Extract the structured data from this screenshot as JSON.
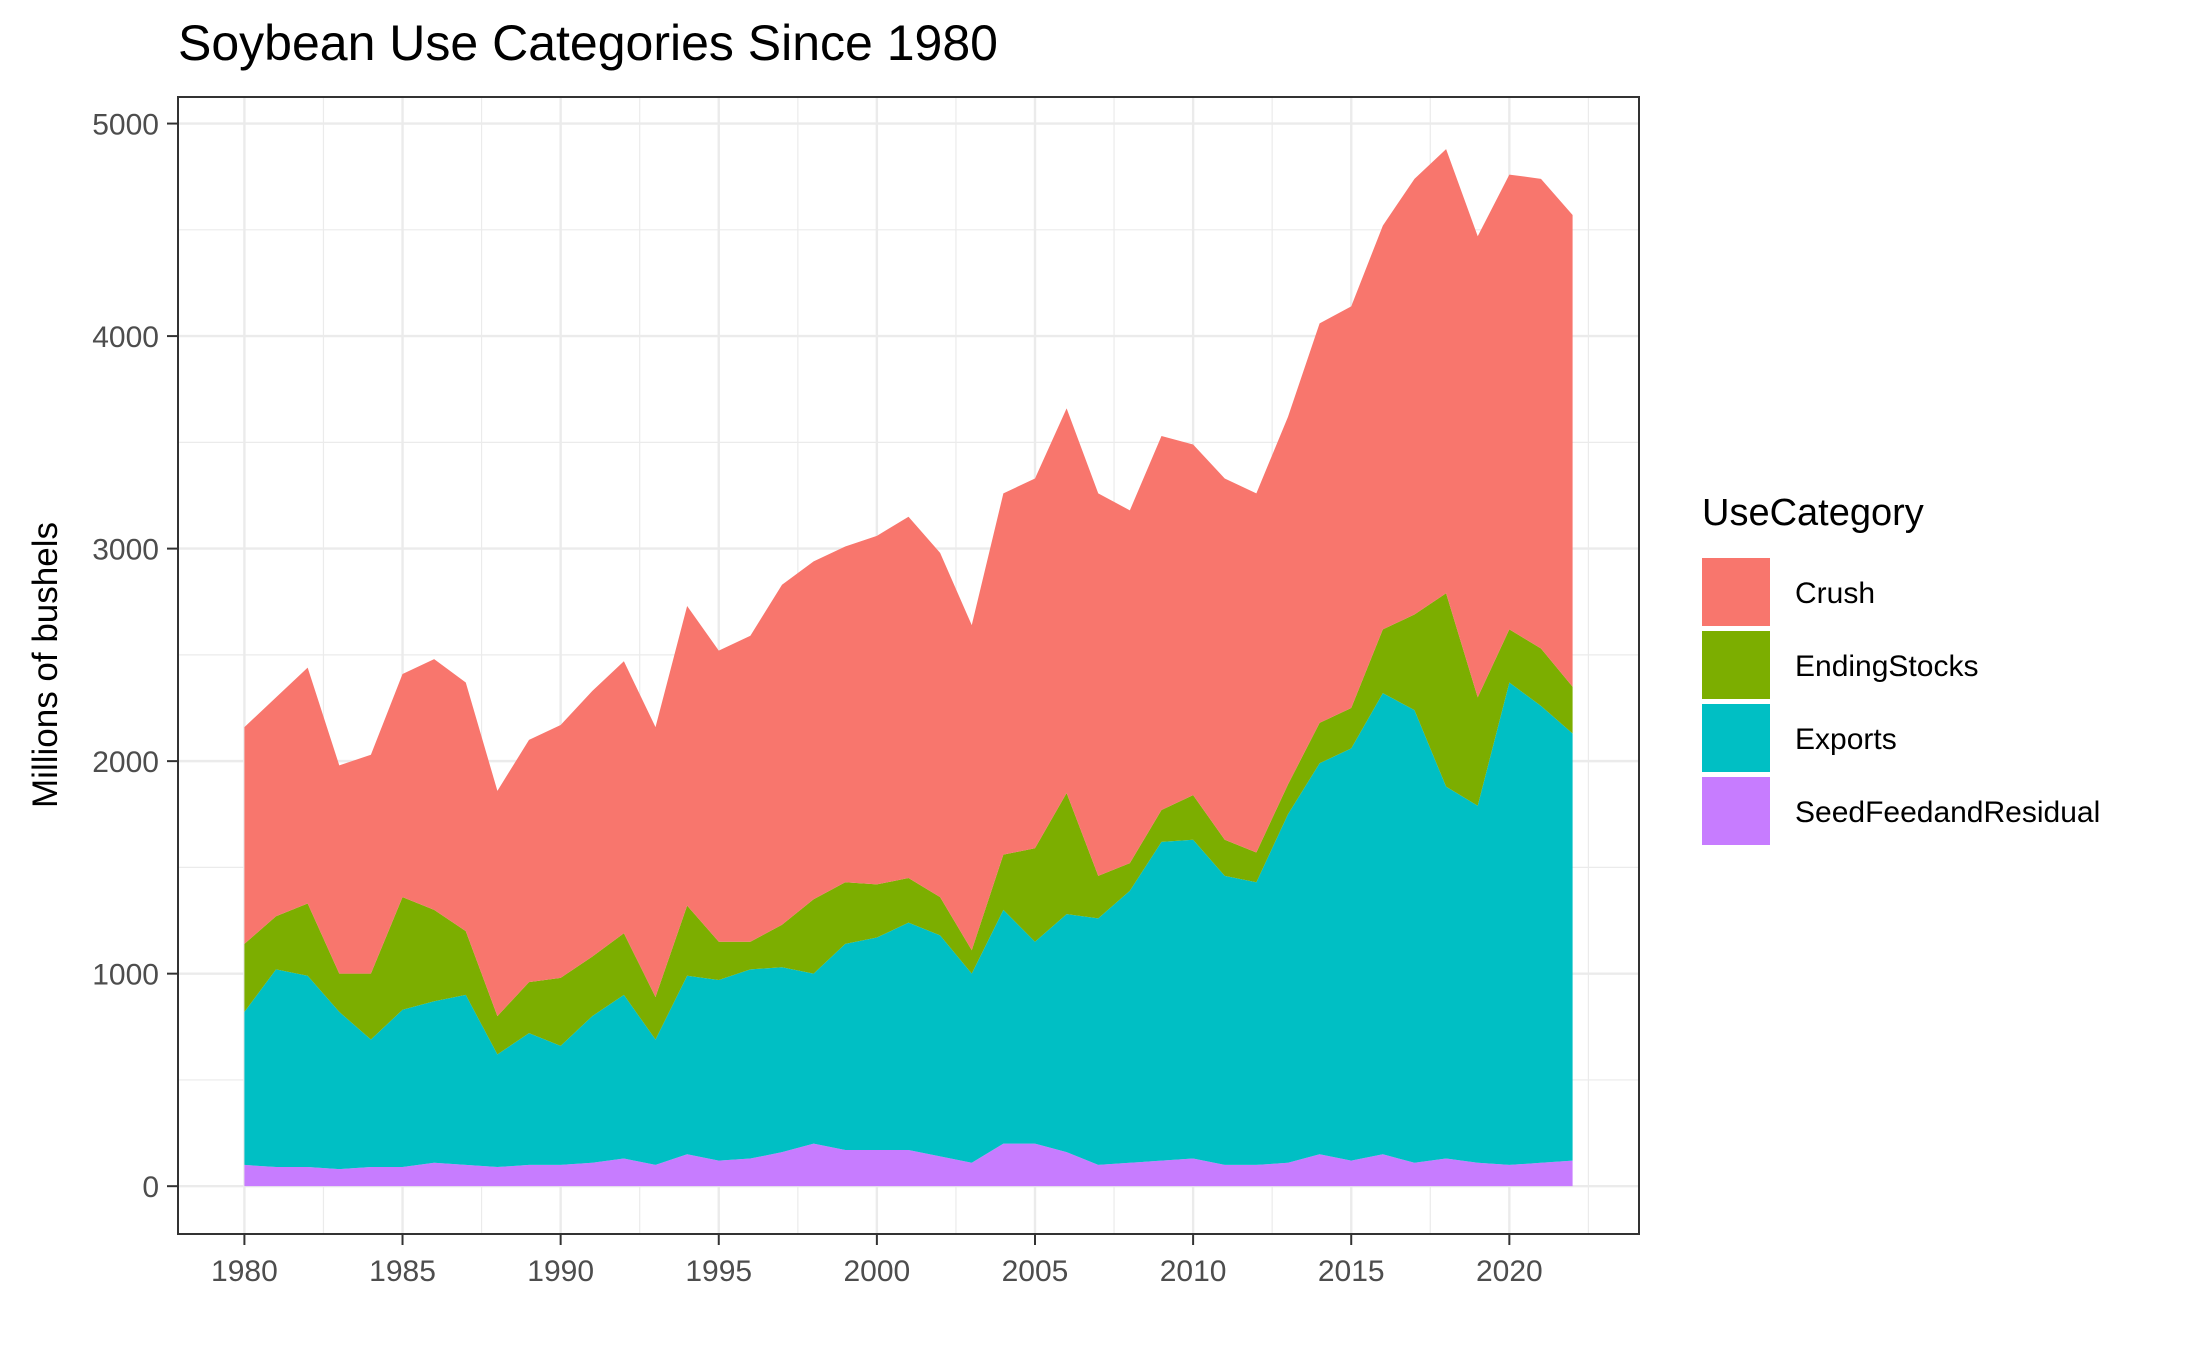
{
  "chart_data": {
    "type": "area",
    "stacked": true,
    "title": "Soybean Use Categories Since 1980",
    "xlabel": "",
    "ylabel": "Millions of bushels",
    "xlim": [
      1977.9,
      2024.1
    ],
    "ylim": [
      -225,
      5125
    ],
    "x_ticks": [
      1980,
      1985,
      1990,
      1995,
      2000,
      2005,
      2010,
      2015,
      2020
    ],
    "y_ticks": [
      0,
      1000,
      2000,
      3000,
      4000,
      5000
    ],
    "grid": true,
    "legend": {
      "title": "UseCategory",
      "position": "right"
    },
    "x": [
      1980,
      1981,
      1982,
      1983,
      1984,
      1985,
      1986,
      1987,
      1988,
      1989,
      1990,
      1991,
      1992,
      1993,
      1994,
      1995,
      1996,
      1997,
      1998,
      1999,
      2000,
      2001,
      2002,
      2003,
      2004,
      2005,
      2006,
      2007,
      2008,
      2009,
      2010,
      2011,
      2012,
      2013,
      2014,
      2015,
      2016,
      2017,
      2018,
      2019,
      2020,
      2021,
      2022
    ],
    "stack_order": [
      "SeedFeedandResidual",
      "Exports",
      "EndingStocks",
      "Crush"
    ],
    "series": [
      {
        "name": "Crush",
        "color": "#F8766D",
        "values": [
          1020,
          1030,
          1110,
          980,
          1030,
          1050,
          1180,
          1170,
          1060,
          1140,
          1190,
          1250,
          1280,
          1270,
          1410,
          1370,
          1440,
          1600,
          1590,
          1580,
          1640,
          1700,
          1620,
          1530,
          1700,
          1740,
          1810,
          1800,
          1660,
          1760,
          1650,
          1700,
          1690,
          1730,
          1880,
          1890,
          1900,
          2050,
          2090,
          2170,
          2140,
          2210,
          2220
        ]
      },
      {
        "name": "EndingStocks",
        "color": "#7CAE00",
        "values": [
          320,
          250,
          340,
          180,
          310,
          530,
          430,
          300,
          180,
          240,
          320,
          280,
          290,
          200,
          330,
          180,
          130,
          200,
          350,
          290,
          250,
          210,
          180,
          110,
          260,
          440,
          570,
          200,
          130,
          150,
          210,
          170,
          140,
          140,
          190,
          190,
          300,
          450,
          910,
          510,
          250,
          270,
          220
        ]
      },
      {
        "name": "Exports",
        "color": "#00BFC4",
        "values": [
          720,
          930,
          900,
          740,
          600,
          740,
          760,
          800,
          530,
          620,
          560,
          690,
          770,
          590,
          840,
          850,
          890,
          870,
          800,
          970,
          1000,
          1070,
          1040,
          890,
          1100,
          950,
          1120,
          1160,
          1280,
          1500,
          1500,
          1360,
          1330,
          1640,
          1840,
          1940,
          2170,
          2130,
          1750,
          1680,
          2270,
          2150,
          2010
        ]
      },
      {
        "name": "SeedFeedandResidual",
        "color": "#C77CFF",
        "values": [
          100,
          90,
          90,
          80,
          90,
          90,
          110,
          100,
          90,
          100,
          100,
          110,
          130,
          100,
          150,
          120,
          130,
          160,
          200,
          170,
          170,
          170,
          140,
          110,
          200,
          200,
          160,
          100,
          110,
          120,
          130,
          100,
          100,
          110,
          150,
          120,
          150,
          110,
          130,
          110,
          100,
          110,
          120
        ]
      }
    ]
  }
}
